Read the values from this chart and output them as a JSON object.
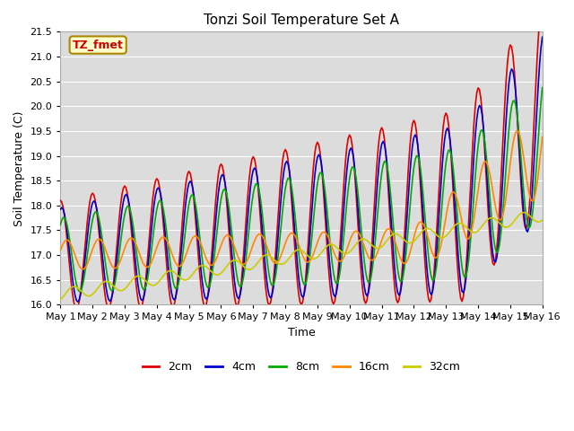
{
  "title": "Tonzi Soil Temperature Set A",
  "xlabel": "Time",
  "ylabel": "Soil Temperature (C)",
  "ylim": [
    16.0,
    21.5
  ],
  "xlim": [
    0,
    360
  ],
  "annotation_text": "TZ_fmet",
  "annotation_bbox_facecolor": "#ffffcc",
  "annotation_bbox_edgecolor": "#aa8800",
  "line_colors": [
    "#dd0000",
    "#0000cc",
    "#00aa00",
    "#ff8800",
    "#cccc00"
  ],
  "line_labels": [
    "2cm",
    "4cm",
    "8cm",
    "16cm",
    "32cm"
  ],
  "bg_color": "#ffffff",
  "plot_bg_color": "#dcdcdc",
  "grid_color": "#ffffff",
  "xtick_labels": [
    "May 1",
    "May 2",
    "May 3",
    "May 4",
    "May 5",
    "May 6",
    "May 7",
    "May 8",
    "May 9",
    "May 10",
    "May 11",
    "May 12",
    "May 13",
    "May 14",
    "May 15",
    "May 16"
  ],
  "xtick_positions": [
    0,
    24,
    48,
    72,
    96,
    120,
    144,
    168,
    192,
    216,
    240,
    264,
    288,
    312,
    336,
    360
  ],
  "ytick_positions": [
    16.0,
    16.5,
    17.0,
    17.5,
    18.0,
    18.5,
    19.0,
    19.5,
    20.0,
    20.5,
    21.0,
    21.5
  ]
}
